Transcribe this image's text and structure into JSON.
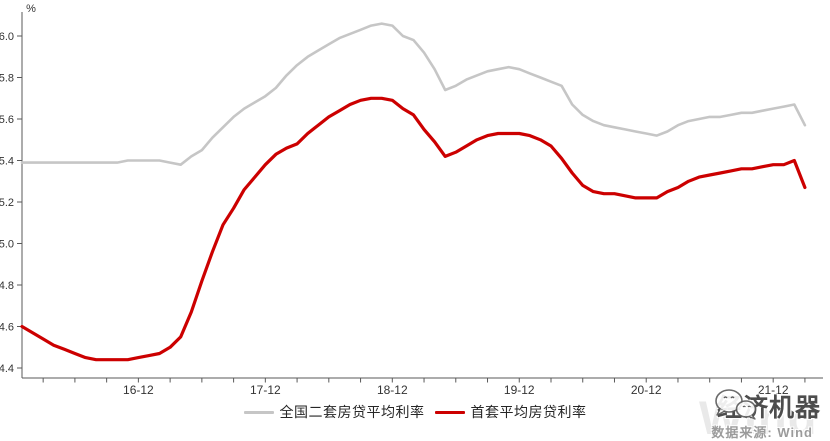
{
  "chart_data": {
    "type": "line",
    "title": "",
    "ylabel": "%",
    "xlabel": "",
    "grid": false,
    "legend_position": "bottom-center",
    "ylim": [
      4.4,
      6.12
    ],
    "yticks": [
      4.4,
      4.6,
      4.8,
      5.0,
      5.2,
      5.4,
      5.6,
      5.8,
      6.0
    ],
    "x_start": "2016-01",
    "x_end": "2022-03",
    "x_frequency": "monthly",
    "x_tick_labels": [
      "16-12",
      "17-12",
      "18-12",
      "19-12",
      "20-12",
      "21-12"
    ],
    "x_tick_month_indices": [
      11,
      23,
      35,
      47,
      59,
      71
    ],
    "series": [
      {
        "name": "全国二套房贷平均利率",
        "color": "#c6c6c6",
        "values": [
          5.39,
          5.39,
          5.39,
          5.39,
          5.39,
          5.39,
          5.39,
          5.39,
          5.39,
          5.39,
          5.4,
          5.4,
          5.4,
          5.4,
          5.39,
          5.38,
          5.42,
          5.45,
          5.51,
          5.56,
          5.61,
          5.65,
          5.68,
          5.71,
          5.75,
          5.81,
          5.86,
          5.9,
          5.93,
          5.96,
          5.99,
          6.01,
          6.03,
          6.05,
          6.06,
          6.05,
          6.0,
          5.98,
          5.92,
          5.84,
          5.74,
          5.76,
          5.79,
          5.81,
          5.83,
          5.84,
          5.85,
          5.84,
          5.82,
          5.8,
          5.78,
          5.76,
          5.67,
          5.62,
          5.59,
          5.57,
          5.56,
          5.55,
          5.54,
          5.53,
          5.52,
          5.54,
          5.57,
          5.59,
          5.6,
          5.61,
          5.61,
          5.62,
          5.63,
          5.63,
          5.64,
          5.65,
          5.66,
          5.67,
          5.57
        ]
      },
      {
        "name": "首套平均房贷利率",
        "color": "#cc0000",
        "values": [
          4.6,
          4.57,
          4.54,
          4.51,
          4.49,
          4.47,
          4.45,
          4.44,
          4.44,
          4.44,
          4.44,
          4.45,
          4.46,
          4.47,
          4.5,
          4.55,
          4.67,
          4.82,
          4.96,
          5.09,
          5.17,
          5.26,
          5.32,
          5.38,
          5.43,
          5.46,
          5.48,
          5.53,
          5.57,
          5.61,
          5.64,
          5.67,
          5.69,
          5.7,
          5.7,
          5.69,
          5.65,
          5.62,
          5.55,
          5.49,
          5.42,
          5.44,
          5.47,
          5.5,
          5.52,
          5.53,
          5.53,
          5.53,
          5.52,
          5.5,
          5.47,
          5.41,
          5.34,
          5.28,
          5.25,
          5.24,
          5.24,
          5.23,
          5.22,
          5.22,
          5.22,
          5.25,
          5.27,
          5.3,
          5.32,
          5.33,
          5.34,
          5.35,
          5.36,
          5.36,
          5.37,
          5.38,
          5.38,
          5.4,
          5.27
        ]
      }
    ]
  },
  "legend": {
    "item1": "全国二套房贷平均利率",
    "item2": "首套平均房贷利率"
  },
  "watermark": {
    "brand": "经济机器",
    "source": "数据来源: Wind",
    "wind_large": "Wind"
  }
}
